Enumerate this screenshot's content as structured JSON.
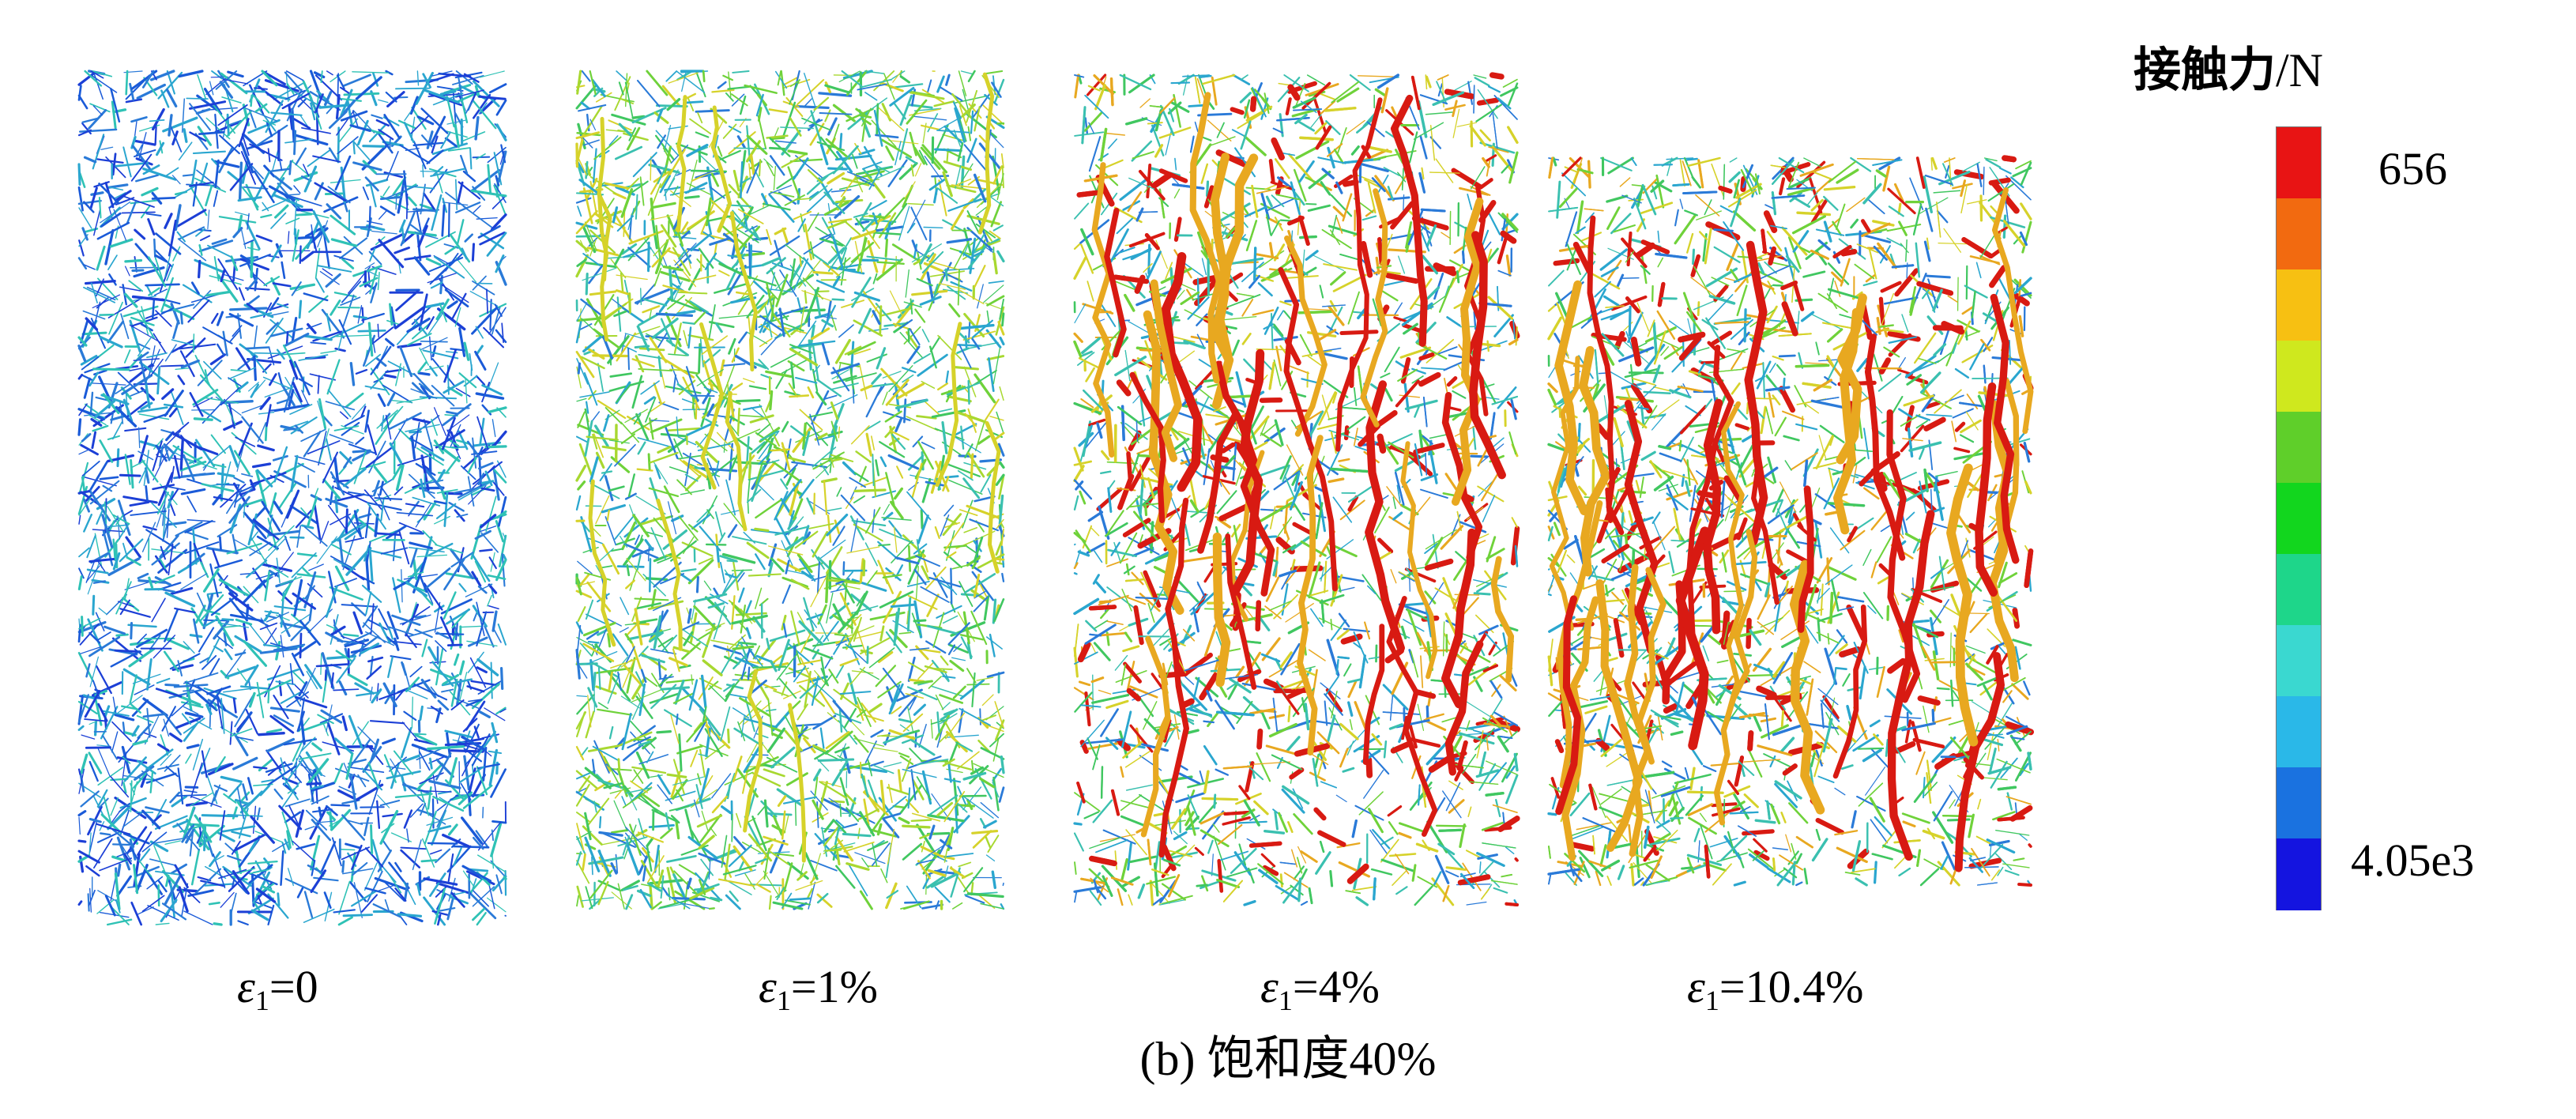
{
  "panels": [
    {
      "id": "p0",
      "subscript": "1",
      "value": "=0",
      "dominant": "cool"
    },
    {
      "id": "p1",
      "subscript": "1",
      "value": "=1%",
      "dominant": "mid"
    },
    {
      "id": "p2",
      "subscript": "1",
      "value": "=4%",
      "dominant": "warm"
    },
    {
      "id": "p3",
      "subscript": "1",
      "value": "=10.4%",
      "dominant": "warm"
    }
  ],
  "symbol": "ε",
  "caption": "(b) 饱和度40%",
  "legend": {
    "title_zh": "接触力",
    "title_unit": "/N",
    "max_label": "656",
    "min_label": "4.05e3",
    "colors": [
      "#e81414",
      "#f26a10",
      "#f7c012",
      "#cfe81e",
      "#5fcf2a",
      "#12d61e",
      "#1ed68a",
      "#3ad8d0",
      "#2ab8e8",
      "#1a72e0",
      "#1414e0"
    ]
  },
  "colors": {
    "cool": [
      "#1c3fd6",
      "#1a5ad8",
      "#2a7ad8",
      "#2aa6cf",
      "#2fc2b5"
    ],
    "mid": [
      "#2aa6cf",
      "#3ac0b0",
      "#40c760",
      "#6fd23a",
      "#2a7ad8",
      "#a8d830",
      "#d6d22a"
    ],
    "warm": [
      "#2aa6cf",
      "#3ac0b0",
      "#40c760",
      "#6fd23a",
      "#2a7ad8",
      "#d6d22a",
      "#e8a820",
      "#d81a12"
    ]
  }
}
